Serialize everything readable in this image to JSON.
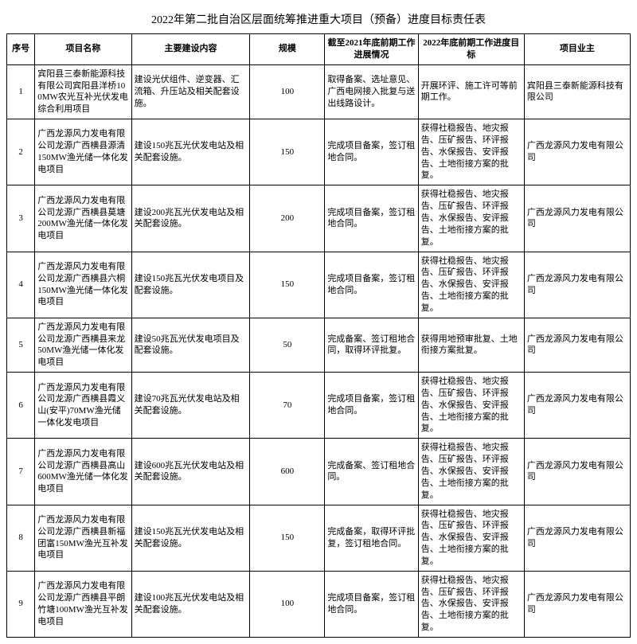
{
  "title": "2022年第二批自治区层面统筹推进重大项目（预备）进度目标责任表",
  "columns": [
    "序号",
    "项目名称",
    "主要建设内容",
    "规模",
    "截至2021年底前期工作进展情况",
    "2022年底前期工作进度目标",
    "项目业主"
  ],
  "rows": [
    {
      "seq": "1",
      "name": "宾阳县三泰新能源科技有限公司宾阳县洋桥100MW农光互补光伏发电综合利用项目",
      "content": "建设光伏组件、逆变器、汇流箱、升压站及相关配套设施。",
      "scale": "100",
      "status": "取得备案、选址意见、广西电网接入批复与送出线路设计。",
      "target": "开展环评、施工许可等前期工作。",
      "owner": "宾阳县三泰新能源科技有限公司"
    },
    {
      "seq": "2",
      "name": "广西龙源风力发电有限公司龙源广西横县源清150MW渔光储一体化发电项目",
      "content": "建设150兆瓦光伏发电站及相关配套设施。",
      "scale": "150",
      "status": "完成项目备案，签订租地合同。",
      "target": "获得社稳报告、地灾报告、压矿报告、环评报告、水保报告、安评报告、土地衔接方案的批复。",
      "owner": "广西龙源风力发电有限公司"
    },
    {
      "seq": "3",
      "name": "广西龙源风力发电有限公司龙源广西横县莫塘200MW渔光储一体化发电项目",
      "content": "建设200兆瓦光伏发电站及相关配套设施。",
      "scale": "200",
      "status": "完成项目备案，签订租地合同。",
      "target": "获得社稳报告、地灾报告、压矿报告、环评报告、水保报告、安评报告、土地衔接方案的批复。",
      "owner": "广西龙源风力发电有限公司"
    },
    {
      "seq": "4",
      "name": "广西龙源风力发电有限公司龙源广西横县六桐150MW渔光储一体化发电项目",
      "content": "建设150兆瓦光伏发电项目及配套设施。",
      "scale": "150",
      "status": "完成项目备案，签订租地合同。",
      "target": "获得社稳报告、地灾报告、压矿报告、环评报告、水保报告、安评报告、土地衔接方案的批复。",
      "owner": "广西龙源风力发电有限公司"
    },
    {
      "seq": "5",
      "name": "广西龙源风力发电有限公司龙源广西横县来龙50MW渔光储一体化发电项目",
      "content": "建设50兆瓦光伏发电项目及配套设施。",
      "scale": "50",
      "status": "完成备案、签订租地合同，取得环评批复。",
      "target": "获得用地预审批复、土地衔接方案批复。",
      "owner": "广西龙源风力发电有限公司"
    },
    {
      "seq": "6",
      "name": "广西龙源风力发电有限公司龙源广西横县霞义山(安平)70MW渔光储一体化发电项目",
      "content": "建设70兆瓦光伏发电站及相关配套设施。",
      "scale": "70",
      "status": "完成项目备案，签订租地合同。",
      "target": "获得社稳报告、地灾报告、压矿报告、环评报告、水保报告、安评报告、土地衔接方案的批复。",
      "owner": "广西龙源风力发电有限公司"
    },
    {
      "seq": "7",
      "name": "广西龙源风力发电有限公司龙源广西横县高山600MW渔光储一体化发电项目",
      "content": "建设600兆瓦光伏发电站及相关配套设施。",
      "scale": "600",
      "status": "完成备案、签订租地合同。",
      "target": "获得社稳报告、地灾报告、压矿报告、环评报告、水保报告、安评报告、土地衔接方案的批复。",
      "owner": "广西龙源风力发电有限公司"
    },
    {
      "seq": "8",
      "name": "广西龙源风力发电有限公司龙源广西横县新福团富150MW渔光互补发电项目",
      "content": "建设150兆瓦光伏发电站及相关配套设施。",
      "scale": "150",
      "status": "完成备案，取得环评批复，签订租地合同。",
      "target": "获得社稳报告、地灾报告、压矿报告、环评报告、水保报告、安评报告、土地衔接方案的批复。",
      "owner": "广西龙源风力发电有限公司"
    },
    {
      "seq": "9",
      "name": "广西龙源风力发电有限公司龙源广西横县平朗竹塘100MW渔光互补发电项目",
      "content": "建设100兆瓦光伏发电站及相关配套设施。",
      "scale": "100",
      "status": "完成项目备案，签订租地合同。",
      "target": "获得社稳报告、地灾报告、压矿报告、环评报告、水保报告、安评报告、土地衔接方案的批复。",
      "owner": "广西龙源风力发电有限公司"
    }
  ],
  "style": {
    "background": "#ffffff",
    "border_color": "#000000",
    "title_fontsize": 14,
    "cell_fontsize": 11,
    "font_family": "SimSun"
  }
}
